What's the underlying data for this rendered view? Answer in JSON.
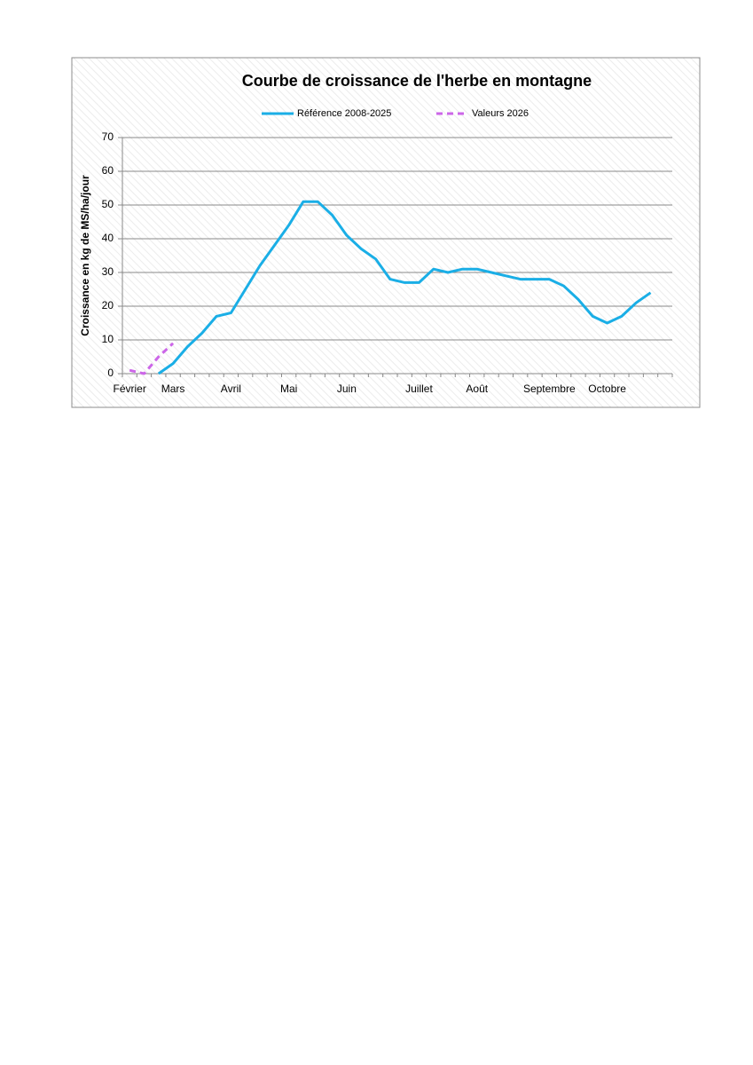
{
  "chart_data": {
    "type": "line",
    "title": "Courbe de croissance de l'herbe en montagne",
    "y_label": "Croissance en kg de MS/ha/jour",
    "categories": [
      "Février",
      null,
      null,
      "Mars",
      null,
      null,
      null,
      "Avril",
      null,
      null,
      null,
      "Mai",
      null,
      null,
      null,
      "Juin",
      null,
      null,
      null,
      null,
      "Juillet",
      null,
      null,
      null,
      "Août",
      null,
      null,
      null,
      null,
      "Septembre",
      null,
      null,
      null,
      "Octobre",
      null,
      null,
      null,
      null
    ],
    "series": [
      {
        "name": "Référence 2008-2025",
        "color": "#1aaee6",
        "dash": false,
        "values": [
          null,
          null,
          0,
          3,
          8,
          12,
          17,
          18,
          25,
          32,
          38,
          44,
          51,
          51,
          47,
          41,
          37,
          34,
          28,
          27,
          27,
          31,
          30,
          31,
          31,
          30,
          29,
          28,
          28,
          28,
          26,
          22,
          17,
          15,
          17,
          21,
          24,
          null
        ]
      },
      {
        "name": "Valeurs 2026",
        "color": "#cc66e8",
        "dash": true,
        "values": [
          1,
          0,
          5,
          9,
          null,
          null,
          null,
          null,
          null,
          null,
          null,
          null,
          null,
          null,
          null,
          null,
          null,
          null,
          null,
          null,
          null,
          null,
          null,
          null,
          null,
          null,
          null,
          null,
          null,
          null,
          null,
          null,
          null,
          null,
          null,
          null,
          null,
          null
        ]
      }
    ],
    "ylim": [
      0,
      70
    ],
    "yticks": [
      0,
      10,
      20,
      30,
      40,
      50,
      60,
      70
    ],
    "grid": true,
    "legend": "top"
  }
}
